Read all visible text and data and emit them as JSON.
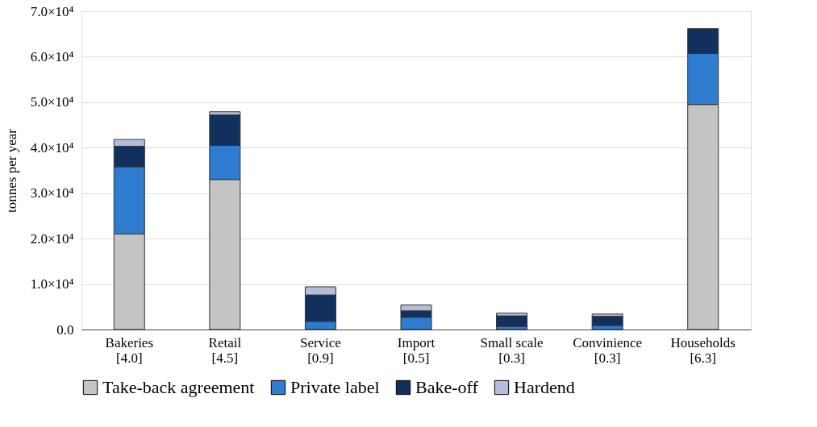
{
  "chart_data": {
    "type": "bar",
    "stacked": true,
    "ylabel": "tonnes per year",
    "categories": [
      "Bakeries\n[4.0]",
      "Retail\n[4.5]",
      "Service\n[0.9]",
      "Import\n[0.5]",
      "Small scale\n[0.3]",
      "Convinience\n[0.3]",
      "Households\n[6.3]"
    ],
    "series": [
      {
        "name": "Take-back agreement",
        "color": "#c4c4c4",
        "values": [
          21000,
          33000,
          0,
          0,
          0,
          0,
          49500
        ]
      },
      {
        "name": "Private label",
        "color": "#2e7bd0",
        "values": [
          14800,
          7500,
          1800,
          2700,
          700,
          900,
          11200
        ]
      },
      {
        "name": "Bake-off",
        "color": "#12305e",
        "values": [
          4500,
          6700,
          5800,
          1400,
          2300,
          2000,
          5500
        ]
      },
      {
        "name": "Hardend",
        "color": "#b4bedc",
        "values": [
          1500,
          700,
          1800,
          1300,
          600,
          500,
          null
        ]
      }
    ],
    "ylim": [
      0,
      70000
    ],
    "yticks": [
      {
        "value": 0,
        "label": "0.0"
      },
      {
        "value": 10000,
        "label": "1.0×10⁴"
      },
      {
        "value": 20000,
        "label": "2.0×10⁴"
      },
      {
        "value": 30000,
        "label": "3.0×10⁴"
      },
      {
        "value": 40000,
        "label": "4.0×10⁴"
      },
      {
        "value": 50000,
        "label": "5.0×10⁴"
      },
      {
        "value": 60000,
        "label": "6.0×10⁴"
      },
      {
        "value": 70000,
        "label": "7.0×10⁴"
      }
    ],
    "grid": "y",
    "legend": "bottom"
  }
}
